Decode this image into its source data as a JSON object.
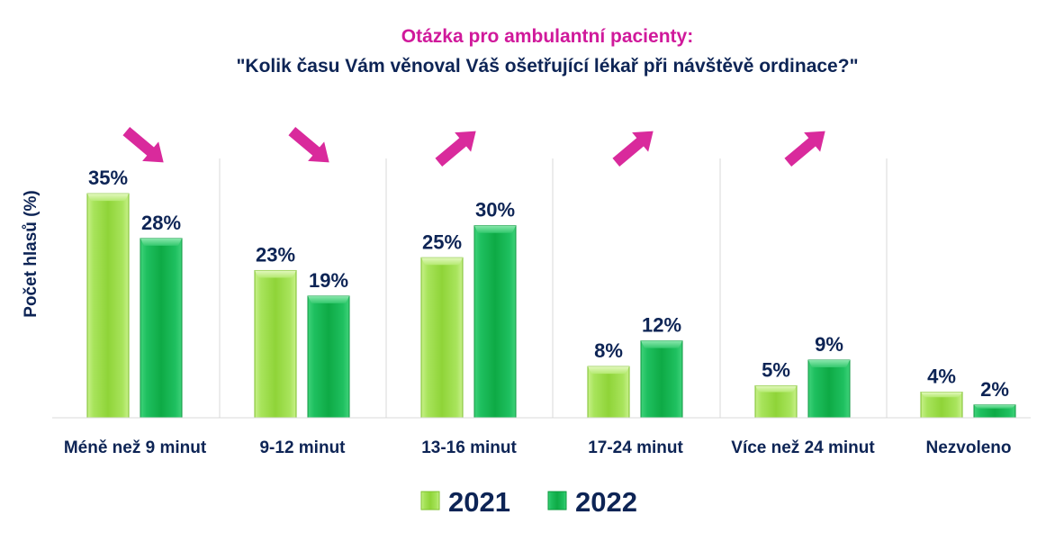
{
  "colors": {
    "title": "#d0199b",
    "text": "#0d2455",
    "series_2021": "#8fd438",
    "series_2022": "#12b34a",
    "arrow": "#d92a9c",
    "grid": "#d9d9d9"
  },
  "chart_data": {
    "type": "bar",
    "title": "Otázka pro ambulantní pacienty:",
    "subtitle": "\"Kolik času Vám věnoval Váš ošetřující lékař při návštěvě ordinace?\"",
    "xlabel": "",
    "ylabel": "Počet hlasů (%)",
    "categories": [
      "Méně než 9 minut",
      "9-12 minut",
      "13-16 minut",
      "17-24 minut",
      "Více než 24 minut",
      "Nezvoleno"
    ],
    "series": [
      {
        "name": "2021",
        "values": [
          35,
          23,
          25,
          8,
          5,
          4
        ],
        "labels": [
          "35%",
          "23%",
          "25%",
          "8%",
          "5%",
          "4%"
        ]
      },
      {
        "name": "2022",
        "values": [
          28,
          19,
          30,
          12,
          9,
          2
        ],
        "labels": [
          "28%",
          "19%",
          "30%",
          "12%",
          "9%",
          "2%"
        ]
      }
    ],
    "trend_arrows": [
      "down",
      "down",
      "up",
      "up",
      "up"
    ],
    "ylim": [
      0,
      35
    ],
    "grid": false,
    "legend": "bottom"
  }
}
